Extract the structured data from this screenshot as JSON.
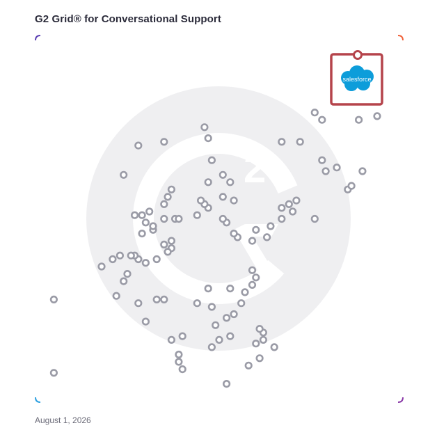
{
  "title": "G2 Grid® for Conversational Support",
  "date": "August 1, 2026",
  "colors": {
    "frame_top_left": "#5b3fb3",
    "frame_top_right": "#f0623a",
    "frame_bottom_left": "#2a9fe0",
    "frame_bottom_right": "#8a3aa8",
    "point_stroke": "#9a9ba6",
    "highlight_box": "#b5444b",
    "salesforce_cloud": "#0d9dda",
    "watermark": "#f0f0f2"
  },
  "chart_data": {
    "type": "scatter",
    "title": "G2 Grid® for Conversational Support",
    "xlabel": "",
    "ylabel": "",
    "xlim": [
      0,
      100
    ],
    "ylim": [
      0,
      100
    ],
    "grid": "quadrants",
    "highlight": {
      "name": "salesforce",
      "x": 88,
      "y": 94
    },
    "points": [
      [
        76,
        79
      ],
      [
        88,
        77
      ],
      [
        72,
        71
      ],
      [
        78,
        77
      ],
      [
        93,
        78
      ],
      [
        67,
        71
      ],
      [
        78,
        66
      ],
      [
        79,
        63
      ],
      [
        82,
        64
      ],
      [
        89,
        63
      ],
      [
        85,
        58
      ],
      [
        86,
        59
      ],
      [
        67,
        53
      ],
      [
        69,
        54
      ],
      [
        71,
        55
      ],
      [
        70,
        52
      ],
      [
        67,
        50
      ],
      [
        76,
        50
      ],
      [
        64,
        48
      ],
      [
        63,
        45
      ],
      [
        60,
        47
      ],
      [
        59,
        44
      ],
      [
        55,
        45
      ],
      [
        54,
        46
      ],
      [
        52,
        49
      ],
      [
        51,
        50
      ],
      [
        54,
        55
      ],
      [
        47,
        53
      ],
      [
        46,
        54
      ],
      [
        44,
        51
      ],
      [
        45,
        55
      ],
      [
        47,
        60
      ],
      [
        51,
        56
      ],
      [
        53,
        60
      ],
      [
        51,
        62
      ],
      [
        48,
        66
      ],
      [
        47,
        72
      ],
      [
        46,
        75
      ],
      [
        35,
        71
      ],
      [
        28,
        70
      ],
      [
        24,
        62
      ],
      [
        37,
        58
      ],
      [
        35,
        54
      ],
      [
        36,
        56
      ],
      [
        29,
        51
      ],
      [
        27,
        51
      ],
      [
        31,
        52
      ],
      [
        30,
        49
      ],
      [
        29,
        46
      ],
      [
        32,
        47
      ],
      [
        32,
        48
      ],
      [
        35,
        50
      ],
      [
        38,
        50
      ],
      [
        39,
        50
      ],
      [
        37,
        44
      ],
      [
        37,
        42
      ],
      [
        35,
        43
      ],
      [
        36,
        41
      ],
      [
        33,
        39
      ],
      [
        30,
        38
      ],
      [
        28,
        39
      ],
      [
        27,
        40
      ],
      [
        26,
        40
      ],
      [
        23,
        40
      ],
      [
        21,
        39
      ],
      [
        18,
        37
      ],
      [
        25,
        35
      ],
      [
        24,
        33
      ],
      [
        22,
        29
      ],
      [
        28,
        27
      ],
      [
        33,
        28
      ],
      [
        35,
        28
      ],
      [
        44,
        27
      ],
      [
        47,
        31
      ],
      [
        53,
        31
      ],
      [
        59,
        32
      ],
      [
        59,
        36
      ],
      [
        60,
        34
      ],
      [
        57,
        30
      ],
      [
        56,
        27
      ],
      [
        54,
        24
      ],
      [
        52,
        23
      ],
      [
        48,
        26
      ],
      [
        49,
        21
      ],
      [
        53,
        18
      ],
      [
        48,
        15
      ],
      [
        62,
        19
      ],
      [
        61,
        20
      ],
      [
        62,
        17
      ],
      [
        61,
        12
      ],
      [
        58,
        10
      ],
      [
        65,
        15
      ],
      [
        60,
        16
      ],
      [
        50,
        17
      ],
      [
        30,
        22
      ],
      [
        37,
        17
      ],
      [
        40,
        18
      ],
      [
        39,
        13
      ],
      [
        39,
        11
      ],
      [
        40,
        9
      ],
      [
        52,
        5
      ],
      [
        5,
        28
      ],
      [
        5,
        8
      ]
    ]
  }
}
